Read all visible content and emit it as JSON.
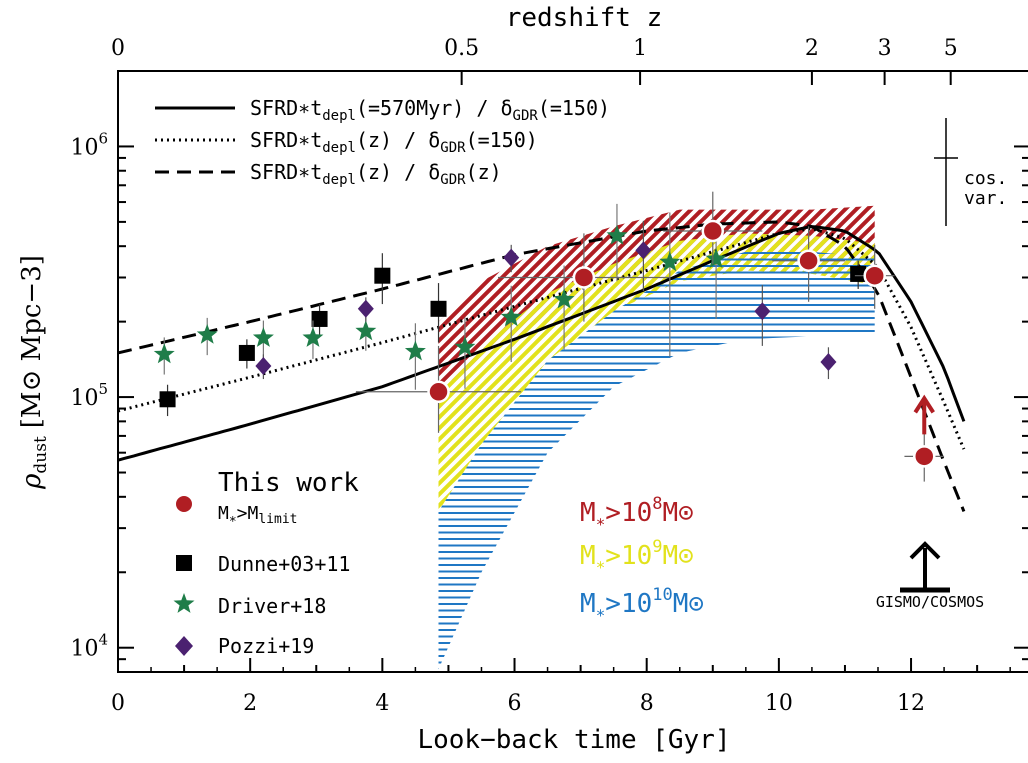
{
  "chart_data": {
    "type": "scatter",
    "xlabel": "Look−back time [Gyr]",
    "xlim": [
      0,
      13.8
    ],
    "x_ticks": [
      "0",
      "2",
      "4",
      "6",
      "8",
      "10",
      "12"
    ],
    "top_axis": {
      "label": "redshift z",
      "ticks": [
        {
          "z": "0",
          "t": 0
        },
        {
          "z": "0.5",
          "t": 5.2
        },
        {
          "z": "1",
          "t": 7.9
        },
        {
          "z": "2",
          "t": 10.5
        },
        {
          "z": "3",
          "t": 11.6
        },
        {
          "z": "5",
          "t": 12.6
        }
      ]
    },
    "ylabel": {
      "sym": "ρ",
      "sub": "dust",
      "unit": "[M⊙ Mpc−3]"
    },
    "ylim": [
      8000,
      2000000
    ],
    "y_scale": "log",
    "y_ticks": [
      {
        "value": 10000,
        "base": "10",
        "exp": "4"
      },
      {
        "value": 100000,
        "base": "10",
        "exp": "5"
      },
      {
        "value": 1000000,
        "base": "10",
        "exp": "6"
      }
    ],
    "model_lines": [
      {
        "name": "SFRD∗t_depl(=570Myr) / δ_GDR(=150)",
        "style": "solid",
        "x": [
          0,
          2,
          4,
          6,
          8,
          9,
          10,
          10.5,
          11,
          11.5,
          12,
          12.5,
          12.8
        ],
        "y": [
          56000,
          78000,
          110000,
          170000,
          270000,
          350000,
          450000,
          480000,
          460000,
          380000,
          240000,
          130000,
          80000
        ]
      },
      {
        "name": "SFRD∗t_depl(z) / δ_GDR(=150)",
        "style": "dotted",
        "x": [
          0,
          2,
          4,
          6,
          8,
          9,
          10,
          10.5,
          11,
          11.5,
          12,
          12.5,
          12.8
        ],
        "y": [
          88000,
          120000,
          165000,
          230000,
          320000,
          380000,
          450000,
          470000,
          430000,
          330000,
          190000,
          95000,
          62000
        ]
      },
      {
        "name": "SFRD∗t_depl(z) / δ_GDR(z)",
        "style": "dashed",
        "x": [
          0,
          2,
          4,
          6,
          8,
          9,
          10,
          10.5,
          11,
          11.5,
          12,
          12.5,
          12.8
        ],
        "y": [
          150000,
          200000,
          270000,
          370000,
          460000,
          490000,
          500000,
          480000,
          400000,
          260000,
          120000,
          55000,
          35000
        ]
      }
    ],
    "model_legend_labels": [
      {
        "pre": "SFRD∗t",
        "sub1": "depl",
        "mid": "(=570Myr) / δ",
        "sub2": "GDR",
        "post": "(=150)"
      },
      {
        "pre": "SFRD∗t",
        "sub1": "depl",
        "mid": "(z) / δ",
        "sub2": "GDR",
        "post": "(=150)"
      },
      {
        "pre": "SFRD∗t",
        "sub1": "depl",
        "mid": "(z) / δ",
        "sub2": "GDR",
        "post": "(z)"
      }
    ],
    "this_work": {
      "label": "This work",
      "sublabel": {
        "pre": "M",
        "sub1": "∗",
        "mid": ">M",
        "sub2": "limit"
      },
      "color": "#b01e23",
      "points": [
        {
          "x": 4.85,
          "y": 105000,
          "xerr": 1.25,
          "yerr_lo": 33000,
          "yerr_hi": 55000
        },
        {
          "x": 7.05,
          "y": 300000,
          "xerr": 1.3,
          "yerr_lo": 100000,
          "yerr_hi": 150000
        },
        {
          "x": 9.0,
          "y": 460000,
          "xerr": 0.75,
          "yerr_lo": 120000,
          "yerr_hi": 200000
        },
        {
          "x": 10.45,
          "y": 350000,
          "xerr": 0.55,
          "yerr_lo": 110000,
          "yerr_hi": 130000
        },
        {
          "x": 11.45,
          "y": 305000,
          "xerr": 0.3,
          "yerr_lo": 80000,
          "yerr_hi": 100000
        },
        {
          "x": 12.2,
          "y": 58000,
          "xerr": 0.3,
          "yerr_lo": 12000,
          "yerr_hi": 14000,
          "lower_limit": true
        }
      ]
    },
    "dunne": {
      "label": "Dunne+03+11",
      "color": "#000000",
      "points": [
        {
          "x": 0.75,
          "y": 98000,
          "yerr": 14000
        },
        {
          "x": 1.95,
          "y": 150000,
          "yerr": 20000
        },
        {
          "x": 3.05,
          "y": 205000,
          "yerr": 30000
        },
        {
          "x": 4.0,
          "y": 305000,
          "yerr": 70000
        },
        {
          "x": 4.85,
          "y": 225000,
          "yerr": 60000
        },
        {
          "x": 11.2,
          "y": 310000,
          "yerr": 40000
        }
      ]
    },
    "driver": {
      "label": "Driver+18",
      "color": "#1f7d49",
      "points": [
        {
          "x": 0.7,
          "y": 148000,
          "yerr": 25000
        },
        {
          "x": 1.35,
          "y": 177000,
          "yerr": 30000
        },
        {
          "x": 2.2,
          "y": 172000,
          "yerr": 30000
        },
        {
          "x": 2.95,
          "y": 172000,
          "yerr": 30000
        },
        {
          "x": 3.75,
          "y": 183000,
          "yerr": 30000
        },
        {
          "x": 4.5,
          "y": 152000,
          "yerr": 45000
        },
        {
          "x": 5.25,
          "y": 158000,
          "yerr": 50000
        },
        {
          "x": 5.95,
          "y": 208000,
          "yerr": 70000
        },
        {
          "x": 6.75,
          "y": 245000,
          "yerr": 90000
        },
        {
          "x": 7.55,
          "y": 440000,
          "yerr": 150000
        },
        {
          "x": 8.35,
          "y": 345000,
          "yerr": 200000
        },
        {
          "x": 9.05,
          "y": 355000,
          "yerr": 150000
        }
      ]
    },
    "pozzi": {
      "label": "Pozzi+19",
      "color": "#4b2170",
      "points": [
        {
          "x": 2.2,
          "y": 133000,
          "yerr": 15000
        },
        {
          "x": 3.75,
          "y": 225000,
          "yerr": 25000
        },
        {
          "x": 5.95,
          "y": 360000,
          "yerr": 45000
        },
        {
          "x": 7.95,
          "y": 385000,
          "yerr": 120000
        },
        {
          "x": 9.75,
          "y": 220000,
          "yerr": 60000
        },
        {
          "x": 10.75,
          "y": 138000,
          "yerr": 20000
        }
      ]
    },
    "bands": [
      {
        "label_base": "M",
        "label_sub": "∗",
        "label_rel": ">10",
        "label_exp": "8",
        "label_unit": "M⊙",
        "color": "#b01e23",
        "hatch": "diagonal",
        "x": [
          4.85,
          5.5,
          6.5,
          7.5,
          8.5,
          9.5,
          10.5,
          11.45
        ],
        "y_lo": [
          108000,
          140000,
          210000,
          290000,
          340000,
          360000,
          350000,
          300000
        ],
        "y_hi": [
          200000,
          290000,
          400000,
          480000,
          560000,
          560000,
          560000,
          580000
        ]
      },
      {
        "label_base": "M",
        "label_sub": "∗",
        "label_rel": ">10",
        "label_exp": "9",
        "label_unit": "M⊙",
        "color": "#e2e21c",
        "hatch": "diagonal",
        "x": [
          4.85,
          5.5,
          6.5,
          7.5,
          8.5,
          9.5,
          10.5,
          11.45
        ],
        "y_lo": [
          35000,
          65000,
          140000,
          220000,
          290000,
          320000,
          310000,
          280000
        ],
        "y_hi": [
          108000,
          160000,
          260000,
          340000,
          420000,
          450000,
          440000,
          410000
        ]
      },
      {
        "label_base": "M",
        "label_sub": "∗",
        "label_rel": ">10",
        "label_exp": "10",
        "label_unit": "M⊙",
        "color": "#1f77c4",
        "hatch": "horizontal",
        "x": [
          4.85,
          5.5,
          6.5,
          7.5,
          8.5,
          9.5,
          10.5,
          11.45
        ],
        "y_lo": [
          8200,
          20000,
          60000,
          110000,
          150000,
          170000,
          175000,
          175000
        ],
        "y_hi": [
          35000,
          65000,
          140000,
          220000,
          320000,
          380000,
          380000,
          360000
        ]
      }
    ],
    "gismo": {
      "label": "GISMO/COSMOS",
      "x": 12.3,
      "y": 20000
    },
    "cosmic_variance": {
      "label_line1": "cos.",
      "label_line2": "var.",
      "x": 12.45,
      "y_lo": 500000,
      "y_hi": 860000
    }
  }
}
